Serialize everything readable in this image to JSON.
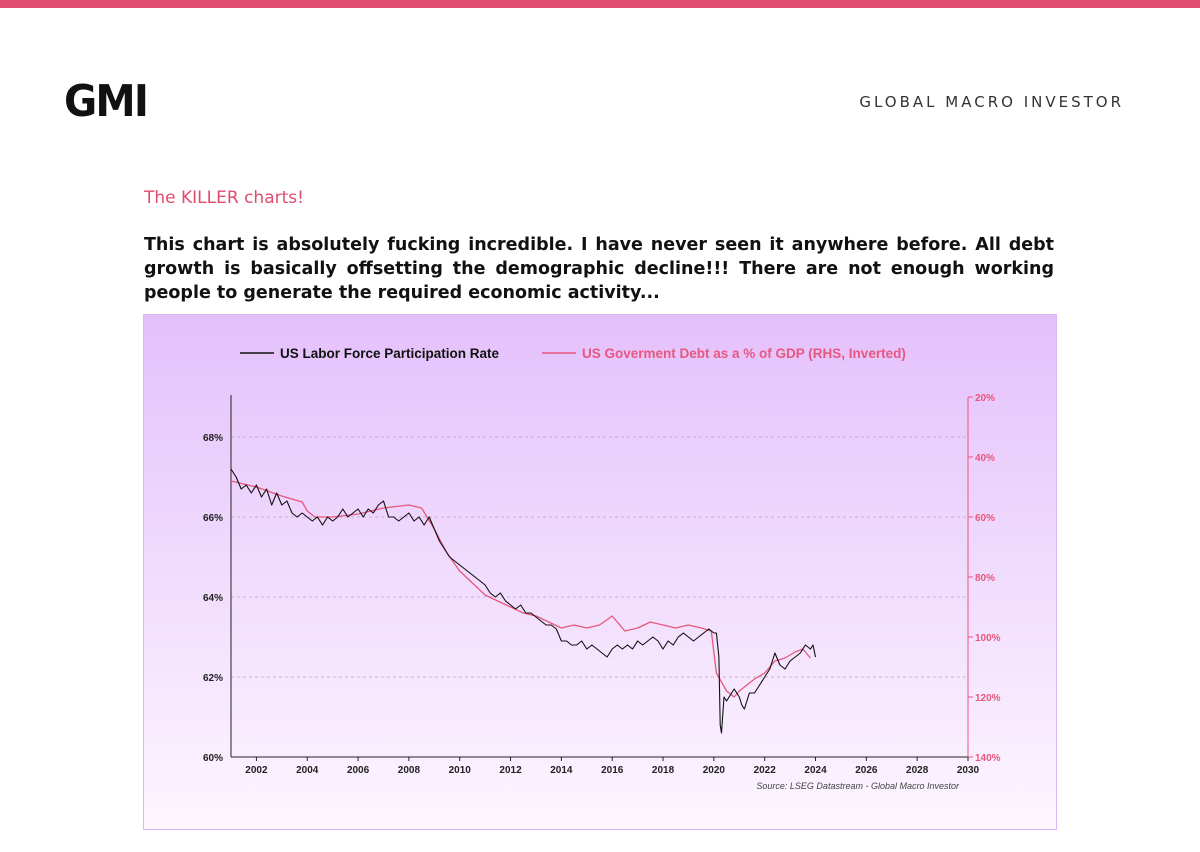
{
  "header": {
    "logo": "GMI",
    "brand": "GLOBAL MACRO INVESTOR"
  },
  "content": {
    "kicker": "The KILLER charts!",
    "body": "This chart is absolutely fucking incredible. I have never seen it anywhere before. All debt growth is basically offsetting the demographic decline!!! There are not enough working people to generate the required economic activity..."
  },
  "colors": {
    "accent": "#e04b6e",
    "labor_line": "#111111",
    "debt_line": "#e8577d"
  },
  "chart_data": {
    "type": "line",
    "legend": [
      {
        "name": "US Labor Force Participation Rate",
        "color": "#111111"
      },
      {
        "name": "US Goverment Debt as a % of GDP (RHS, Inverted)",
        "color": "#e8577d"
      }
    ],
    "legend_position": "top-center",
    "source": "Source: LSEG Datastream - Global Macro Investor",
    "x_ticks": [
      "2002",
      "2004",
      "2006",
      "2008",
      "2010",
      "2012",
      "2014",
      "2016",
      "2018",
      "2020",
      "2022",
      "2024",
      "2026",
      "2028",
      "2030"
    ],
    "xlim": [
      2001.0,
      2030.0
    ],
    "y_left": {
      "ticks": [
        "60%",
        "62%",
        "64%",
        "66%",
        "68%"
      ],
      "ylim": [
        60,
        69
      ]
    },
    "y_right": {
      "ticks": [
        "20%",
        "40%",
        "60%",
        "80%",
        "100%",
        "120%",
        "140%"
      ],
      "ylim": [
        20,
        140
      ],
      "inverted": true
    },
    "grid": true,
    "series": [
      {
        "name": "US Labor Force Participation Rate",
        "axis": "left",
        "x": [
          2001.0,
          2001.2,
          2001.4,
          2001.6,
          2001.8,
          2002.0,
          2002.2,
          2002.4,
          2002.6,
          2002.8,
          2003.0,
          2003.2,
          2003.4,
          2003.6,
          2003.8,
          2004.0,
          2004.2,
          2004.4,
          2004.6,
          2004.8,
          2005.0,
          2005.2,
          2005.4,
          2005.6,
          2005.8,
          2006.0,
          2006.2,
          2006.4,
          2006.6,
          2006.8,
          2007.0,
          2007.2,
          2007.4,
          2007.6,
          2007.8,
          2008.0,
          2008.2,
          2008.4,
          2008.6,
          2008.8,
          2009.0,
          2009.2,
          2009.4,
          2009.6,
          2009.8,
          2010.0,
          2010.2,
          2010.4,
          2010.6,
          2010.8,
          2011.0,
          2011.2,
          2011.4,
          2011.6,
          2011.8,
          2012.0,
          2012.2,
          2012.4,
          2012.6,
          2012.8,
          2013.0,
          2013.2,
          2013.4,
          2013.6,
          2013.8,
          2014.0,
          2014.2,
          2014.4,
          2014.6,
          2014.8,
          2015.0,
          2015.2,
          2015.4,
          2015.6,
          2015.8,
          2016.0,
          2016.2,
          2016.4,
          2016.6,
          2016.8,
          2017.0,
          2017.2,
          2017.4,
          2017.6,
          2017.8,
          2018.0,
          2018.2,
          2018.4,
          2018.6,
          2018.8,
          2019.0,
          2019.2,
          2019.4,
          2019.6,
          2019.8,
          2020.0,
          2020.1,
          2020.2,
          2020.25,
          2020.3,
          2020.4,
          2020.5,
          2020.6,
          2020.8,
          2021.0,
          2021.1,
          2021.2,
          2021.4,
          2021.6,
          2021.8,
          2022.0,
          2022.2,
          2022.4,
          2022.6,
          2022.8,
          2023.0,
          2023.2,
          2023.4,
          2023.6,
          2023.8,
          2023.9,
          2024.0
        ],
        "values": [
          67.2,
          67.0,
          66.7,
          66.8,
          66.6,
          66.8,
          66.5,
          66.7,
          66.3,
          66.6,
          66.3,
          66.4,
          66.1,
          66.0,
          66.1,
          66.0,
          65.9,
          66.0,
          65.8,
          66.0,
          65.9,
          66.0,
          66.2,
          66.0,
          66.1,
          66.2,
          66.0,
          66.2,
          66.1,
          66.3,
          66.4,
          66.0,
          66.0,
          65.9,
          66.0,
          66.1,
          65.9,
          66.0,
          65.8,
          66.0,
          65.7,
          65.4,
          65.2,
          65.0,
          64.9,
          64.8,
          64.7,
          64.6,
          64.5,
          64.4,
          64.3,
          64.1,
          64.0,
          64.1,
          63.9,
          63.8,
          63.7,
          63.8,
          63.6,
          63.6,
          63.5,
          63.4,
          63.3,
          63.3,
          63.2,
          62.9,
          62.9,
          62.8,
          62.8,
          62.9,
          62.7,
          62.8,
          62.7,
          62.6,
          62.5,
          62.7,
          62.8,
          62.7,
          62.8,
          62.7,
          62.9,
          62.8,
          62.9,
          63.0,
          62.9,
          62.7,
          62.9,
          62.8,
          63.0,
          63.1,
          63.0,
          62.9,
          63.0,
          63.1,
          63.2,
          63.1,
          63.1,
          62.5,
          60.8,
          60.6,
          61.5,
          61.4,
          61.5,
          61.7,
          61.5,
          61.3,
          61.2,
          61.6,
          61.6,
          61.8,
          62.0,
          62.2,
          62.6,
          62.3,
          62.2,
          62.4,
          62.5,
          62.6,
          62.8,
          62.7,
          62.8,
          62.5
        ]
      },
      {
        "name": "US Goverment Debt as a % of GDP (RHS, Inverted)",
        "axis": "right",
        "x": [
          2001.0,
          2002.0,
          2003.0,
          2003.8,
          2004.0,
          2004.3,
          2005.0,
          2006.0,
          2007.0,
          2008.0,
          2008.5,
          2009.0,
          2009.5,
          2010.0,
          2010.5,
          2011.0,
          2011.5,
          2012.0,
          2012.5,
          2013.0,
          2013.5,
          2014.0,
          2014.5,
          2015.0,
          2015.5,
          2016.0,
          2016.5,
          2017.0,
          2017.5,
          2018.0,
          2018.5,
          2019.0,
          2019.5,
          2019.9,
          2020.1,
          2020.3,
          2020.5,
          2020.8,
          2021.0,
          2021.3,
          2021.6,
          2022.0,
          2022.4,
          2022.8,
          2023.2,
          2023.5,
          2023.8
        ],
        "values": [
          48,
          50,
          53,
          55,
          58,
          60,
          60,
          59,
          57,
          56,
          57,
          64,
          72,
          78,
          82,
          86,
          88,
          90,
          92,
          93,
          95,
          97,
          96,
          97,
          96,
          93,
          98,
          97,
          95,
          96,
          97,
          96,
          97,
          98,
          112,
          115,
          118,
          120,
          118,
          116,
          114,
          112,
          108,
          107,
          105,
          104,
          107
        ]
      }
    ]
  }
}
